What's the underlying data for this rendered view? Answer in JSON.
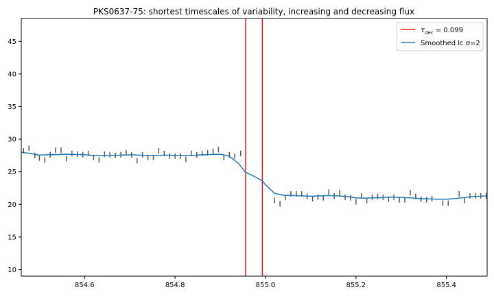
{
  "chart_data": {
    "type": "line",
    "title": "PKS0637-75: shortest timescales of variability, increasing and decreasing flux",
    "xlabel": "",
    "ylabel": "",
    "xlim": [
      854.46,
      855.49
    ],
    "ylim": [
      9.0,
      48.5
    ],
    "xticks": [
      854.6,
      854.8,
      855.0,
      855.2,
      855.4
    ],
    "xtick_labels": [
      "854.6",
      "854.8",
      "855.0",
      "855.2",
      "855.4"
    ],
    "yticks": [
      10,
      15,
      20,
      25,
      30,
      35,
      40,
      45
    ],
    "ytick_labels": [
      "10",
      "15",
      "20",
      "25",
      "30",
      "35",
      "40",
      "45"
    ],
    "grid": false,
    "legend_location": "upper right",
    "vlines": {
      "name": "τ_dec = 0.099",
      "legend_label_main": "τ",
      "legend_label_sub": "dec",
      "legend_label_rest": " = 0.099",
      "color": "#e41a1c",
      "x": [
        854.956,
        854.993
      ]
    },
    "smoothed": {
      "name": "Smoothed lc σ=2",
      "color": "#1f77b4",
      "x": [
        854.46,
        854.48,
        854.5,
        854.52,
        854.54,
        854.56,
        854.58,
        854.6,
        854.62,
        854.64,
        854.66,
        854.68,
        854.7,
        854.72,
        854.74,
        854.76,
        854.78,
        854.8,
        854.82,
        854.84,
        854.86,
        854.88,
        854.9,
        854.92,
        854.94,
        854.956,
        854.975,
        854.993,
        855.0,
        855.02,
        855.04,
        855.06,
        855.08,
        855.1,
        855.12,
        855.14,
        855.16,
        855.18,
        855.2,
        855.22,
        855.24,
        855.26,
        855.28,
        855.3,
        855.32,
        855.34,
        855.36,
        855.38,
        855.4,
        855.42,
        855.44,
        855.46,
        855.49
      ],
      "y": [
        28.0,
        27.8,
        27.55,
        27.6,
        27.65,
        27.7,
        27.65,
        27.6,
        27.5,
        27.45,
        27.5,
        27.55,
        27.6,
        27.55,
        27.5,
        27.5,
        27.55,
        27.5,
        27.45,
        27.5,
        27.6,
        27.65,
        27.7,
        27.4,
        26.3,
        24.9,
        24.3,
        23.6,
        23.0,
        21.7,
        21.4,
        21.35,
        21.3,
        21.25,
        21.3,
        21.35,
        21.3,
        21.2,
        21.0,
        20.95,
        21.0,
        21.05,
        21.1,
        21.05,
        21.0,
        20.9,
        20.85,
        20.8,
        20.8,
        20.9,
        21.05,
        21.2,
        21.3
      ]
    },
    "measurements": {
      "x": [
        854.465,
        854.477,
        854.49,
        854.5,
        854.512,
        854.524,
        854.536,
        854.548,
        854.56,
        854.572,
        854.584,
        854.596,
        854.608,
        854.62,
        854.632,
        854.644,
        854.656,
        854.668,
        854.68,
        854.692,
        854.704,
        854.716,
        854.728,
        854.74,
        854.752,
        854.764,
        854.776,
        854.788,
        854.8,
        854.812,
        854.824,
        854.836,
        854.848,
        854.86,
        854.872,
        854.884,
        854.896,
        854.908,
        854.92,
        854.932,
        854.945,
        855.02,
        855.032,
        855.044,
        855.056,
        855.068,
        855.08,
        855.092,
        855.104,
        855.116,
        855.128,
        855.14,
        855.152,
        855.164,
        855.176,
        855.188,
        855.2,
        855.212,
        855.224,
        855.236,
        855.248,
        855.26,
        855.272,
        855.284,
        855.296,
        855.308,
        855.32,
        855.332,
        855.344,
        855.356,
        855.368,
        855.392,
        855.404,
        855.428,
        855.44,
        855.452,
        855.464,
        855.476,
        855.488
      ],
      "y": [
        28.2,
        28.6,
        27.5,
        27.1,
        26.8,
        27.6,
        28.3,
        28.3,
        27.0,
        27.8,
        27.7,
        27.6,
        27.8,
        27.2,
        26.8,
        27.7,
        27.6,
        27.5,
        27.6,
        27.9,
        27.6,
        26.7,
        27.6,
        27.2,
        27.2,
        28.2,
        27.8,
        27.4,
        27.4,
        27.4,
        26.9,
        27.8,
        27.6,
        27.8,
        27.9,
        28.1,
        28.4,
        27.2,
        27.6,
        27.4,
        27.8,
        20.6,
        20.1,
        21.1,
        21.6,
        21.6,
        21.6,
        21.2,
        20.9,
        21.1,
        21.0,
        21.9,
        21.3,
        21.8,
        21.1,
        21.0,
        20.4,
        21.3,
        20.6,
        21.1,
        21.2,
        21.1,
        20.8,
        21.1,
        20.7,
        20.7,
        21.8,
        21.2,
        20.8,
        20.7,
        20.9,
        20.2,
        20.2,
        21.6,
        20.6,
        21.3,
        21.3,
        21.3,
        21.3
      ]
    },
    "measurement_color": "#555555"
  }
}
